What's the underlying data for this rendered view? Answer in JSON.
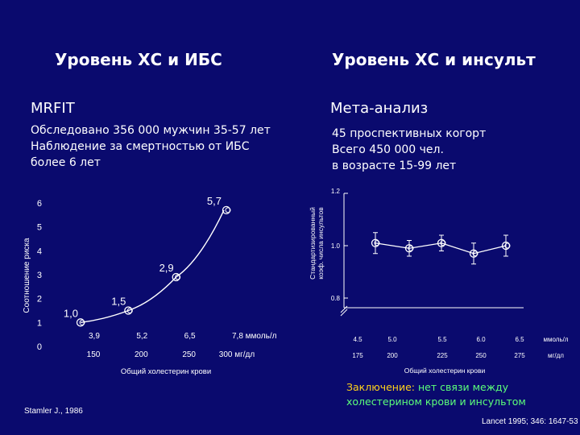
{
  "slide": {
    "left_title": "Уровень ХС и ИБС",
    "right_title": "Уровень ХС и инсульт",
    "left_sub": "MRFIT",
    "right_sub": "Мета-анализ",
    "left_body": [
      "Обследовано 356 000  мужчин 35-57 лет",
      "Наблюдение за смертностью от ИБС",
      "более 6 лет"
    ],
    "right_body": [
      "45 проспективных когорт",
      "Всего 450 000 чел.",
      "в возрасте 15-99 лет"
    ],
    "left_source": "Stamler J., 1986",
    "conclusion_label": "Заключение:",
    "conclusion_text_1": "нет связи между",
    "conclusion_text_2": "холестерином крови и инсультом",
    "right_source": "Lancet 1995; 346: 1647-53"
  },
  "colors": {
    "background": "#0a0a6e",
    "text": "#ffffff",
    "conclusion_label": "#ffd21a",
    "conclusion_text": "#5cff7a"
  },
  "chart_data": [
    {
      "type": "line",
      "ylabel": "Соотношение риска",
      "xlabel": "Общий холестерин крови",
      "x_mmol": [
        3.9,
        5.2,
        6.5,
        7.8
      ],
      "x_mmol_labels": [
        "3,9",
        "5,2",
        "6,5",
        "7,8 ммоль/л"
      ],
      "x_mgdl_labels": [
        "150",
        "200",
        "250",
        "300 мг/дл"
      ],
      "y_ticks": [
        "0",
        "1",
        "2",
        "3",
        "4",
        "5",
        "6"
      ],
      "ylim": [
        0,
        6
      ],
      "points": [
        {
          "x": 3.9,
          "y": 1.0,
          "label": "1,0"
        },
        {
          "x": 5.2,
          "y": 1.5,
          "label": "1,5"
        },
        {
          "x": 6.5,
          "y": 2.9,
          "label": "2,9"
        },
        {
          "x": 7.8,
          "y": 5.7,
          "label": "5,7"
        }
      ]
    },
    {
      "type": "scatter",
      "ylabel": "Стандартизированный коэф. числа инсультов",
      "xlabel": "Общий холестерин крови",
      "x_mmol_labels": [
        "4.5",
        "5.0",
        "5.5",
        "6.0",
        "6.5",
        "ммоль/л"
      ],
      "x_mgdl_labels": [
        "175",
        "200",
        "225",
        "250",
        "275",
        "мг/дл"
      ],
      "y_ticks": [
        "0.8",
        "1.0",
        "1.2"
      ],
      "ylim": [
        0.8,
        1.2
      ],
      "points": [
        {
          "x": 4.5,
          "y": 1.01,
          "err": 0.04
        },
        {
          "x": 5.0,
          "y": 0.99,
          "err": 0.03
        },
        {
          "x": 5.5,
          "y": 1.01,
          "err": 0.03
        },
        {
          "x": 6.0,
          "y": 0.97,
          "err": 0.04
        },
        {
          "x": 6.5,
          "y": 1.0,
          "err": 0.04
        }
      ]
    }
  ]
}
